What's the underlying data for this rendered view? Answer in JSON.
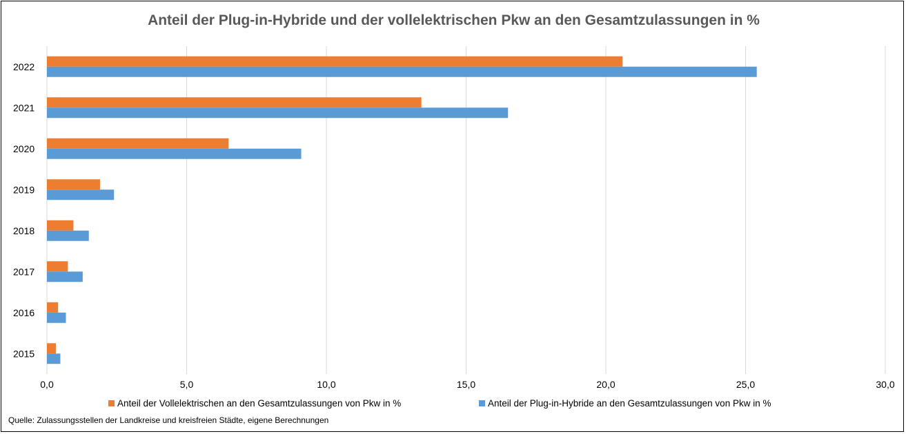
{
  "chart_data": {
    "type": "bar",
    "orientation": "horizontal",
    "title": "Anteil der Plug-in-Hybride und der vollelektrischen Pkw an den Gesamtzulassungen in %",
    "categories": [
      "2022",
      "2021",
      "2020",
      "2019",
      "2018",
      "2017",
      "2016",
      "2015"
    ],
    "series": [
      {
        "name": "Anteil der Vollelektrischen an den Gesamtzulassungen von Pkw in %",
        "color": "#ED7D31",
        "values": [
          20.6,
          13.4,
          6.5,
          1.9,
          0.95,
          0.75,
          0.4,
          0.32
        ]
      },
      {
        "name": "Anteil der Plug-in-Hybride an den Gesamtzulassungen von Pkw in %",
        "color": "#5B9BD5",
        "values": [
          25.4,
          16.5,
          9.1,
          2.4,
          1.5,
          1.28,
          0.68,
          0.48
        ]
      }
    ],
    "xlim": [
      0,
      30
    ],
    "xticks": [
      "0,0",
      "5,0",
      "10,0",
      "15,0",
      "20,0",
      "25,0",
      "30,0"
    ],
    "grid": true,
    "legend_position": "bottom"
  },
  "source_note": "Quelle: Zulassungsstellen der Landkreise und kreisfreien Städte, eigene Berechnungen"
}
